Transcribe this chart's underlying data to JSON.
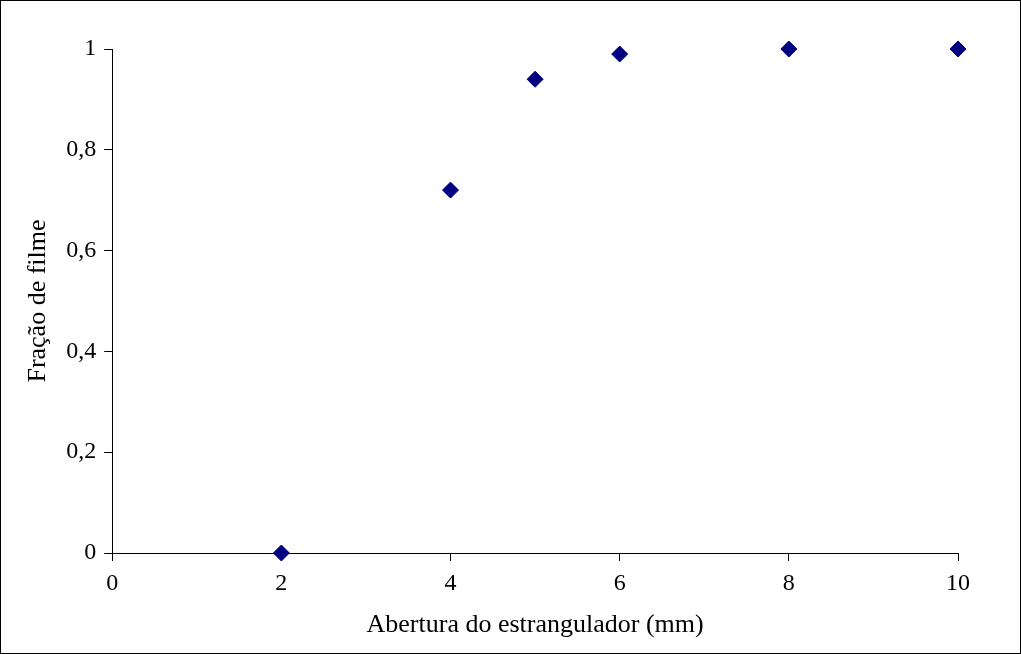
{
  "chart_data": {
    "type": "scatter",
    "xlabel": "Abertura do estrangulador (mm)",
    "ylabel": "Fração de filme",
    "x": [
      2,
      4,
      5,
      6,
      8,
      10
    ],
    "series": [
      {
        "color": "#000080",
        "values": [
          0,
          0.72,
          0.94,
          0.99,
          1,
          1
        ]
      }
    ],
    "xlim": [
      0,
      10
    ],
    "xticks": [
      {
        "value": 0,
        "label": "0"
      },
      {
        "value": 2,
        "label": "2"
      },
      {
        "value": 4,
        "label": "4"
      },
      {
        "value": 6,
        "label": "6"
      },
      {
        "value": 8,
        "label": "8"
      },
      {
        "value": 10,
        "label": "10"
      }
    ],
    "ylim": [
      0,
      1
    ],
    "yticks": [
      {
        "value": 0,
        "label": "0"
      },
      {
        "value": 0.2,
        "label": "0,2"
      },
      {
        "value": 0.4,
        "label": "0,4"
      },
      {
        "value": 0.6,
        "label": "0,6"
      },
      {
        "value": 0.8,
        "label": "0,8"
      },
      {
        "value": 1,
        "label": "1"
      }
    ],
    "grid": false,
    "legend": false,
    "marker": "diamond"
  }
}
